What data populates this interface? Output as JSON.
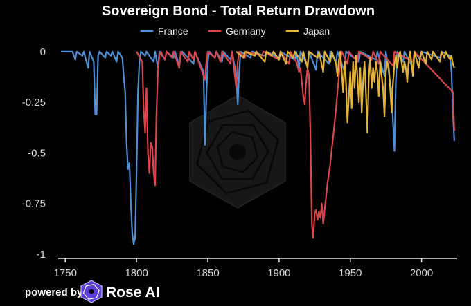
{
  "chart_data": {
    "type": "line",
    "title": "Sovereign Bond - Total Return Drawdown",
    "xlabel": "",
    "ylabel": "",
    "xlim": [
      1745,
      2025
    ],
    "ylim": [
      -1,
      0.03
    ],
    "xticks": [
      1750,
      1800,
      1850,
      1900,
      1950,
      2000
    ],
    "yticks": [
      0,
      -0.25,
      -0.5,
      -0.75,
      -1
    ],
    "ytick_labels": [
      "0",
      "-0.25",
      "-0.5",
      "-0.75",
      "-1"
    ],
    "grid": false,
    "legend_position": "top-center",
    "series": [
      {
        "name": "France",
        "color": "#4f8fd6",
        "points": [
          [
            1747,
            0
          ],
          [
            1755,
            0
          ],
          [
            1757,
            -0.04
          ],
          [
            1758,
            0
          ],
          [
            1762,
            -0.02
          ],
          [
            1763,
            0
          ],
          [
            1766,
            -0.08
          ],
          [
            1767,
            0
          ],
          [
            1770,
            -0.05
          ],
          [
            1771,
            -0.31
          ],
          [
            1772,
            -0.31
          ],
          [
            1773,
            -0.02
          ],
          [
            1774,
            0
          ],
          [
            1778,
            -0.03
          ],
          [
            1779,
            0
          ],
          [
            1782,
            -0.02
          ],
          [
            1783,
            0
          ],
          [
            1786,
            -0.05
          ],
          [
            1787,
            0
          ],
          [
            1790,
            -0.03
          ],
          [
            1791,
            -0.12
          ],
          [
            1792,
            -0.2
          ],
          [
            1793,
            -0.45
          ],
          [
            1794,
            -0.58
          ],
          [
            1795,
            -0.55
          ],
          [
            1796,
            -0.75
          ],
          [
            1797,
            -0.9
          ],
          [
            1798,
            -0.95
          ],
          [
            1799,
            -0.92
          ],
          [
            1800,
            -0.6
          ],
          [
            1801,
            -0.2
          ],
          [
            1802,
            -0.05
          ],
          [
            1803,
            0
          ],
          [
            1806,
            -0.02
          ],
          [
            1807,
            0
          ],
          [
            1812,
            -0.05
          ],
          [
            1813,
            0
          ],
          [
            1815,
            -0.08
          ],
          [
            1816,
            0
          ],
          [
            1820,
            -0.04
          ],
          [
            1821,
            0
          ],
          [
            1826,
            -0.03
          ],
          [
            1827,
            0
          ],
          [
            1830,
            -0.07
          ],
          [
            1831,
            -0.02
          ],
          [
            1832,
            0
          ],
          [
            1840,
            -0.06
          ],
          [
            1841,
            0
          ],
          [
            1847,
            -0.1
          ],
          [
            1848,
            -0.46
          ],
          [
            1849,
            -0.22
          ],
          [
            1850,
            -0.05
          ],
          [
            1851,
            0
          ],
          [
            1855,
            -0.03
          ],
          [
            1856,
            0
          ],
          [
            1860,
            -0.05
          ],
          [
            1861,
            0
          ],
          [
            1866,
            -0.04
          ],
          [
            1867,
            0
          ],
          [
            1870,
            -0.12
          ],
          [
            1871,
            -0.26
          ],
          [
            1872,
            -0.1
          ],
          [
            1873,
            0
          ],
          [
            1880,
            -0.03
          ],
          [
            1881,
            0
          ],
          [
            1890,
            -0.02
          ],
          [
            1891,
            0
          ],
          [
            1900,
            -0.03
          ],
          [
            1901,
            0
          ],
          [
            1911,
            -0.04
          ],
          [
            1912,
            0
          ],
          [
            1914,
            -0.08
          ],
          [
            1915,
            0
          ],
          [
            1920,
            -0.07
          ],
          [
            1921,
            0
          ],
          [
            1926,
            -0.09
          ],
          [
            1927,
            0
          ],
          [
            1935,
            -0.06
          ],
          [
            1936,
            0
          ],
          [
            1940,
            -0.05
          ],
          [
            1941,
            0
          ],
          [
            1946,
            -0.1
          ],
          [
            1947,
            0
          ],
          [
            1956,
            -0.05
          ],
          [
            1957,
            0
          ],
          [
            1968,
            -0.04
          ],
          [
            1969,
            0
          ],
          [
            1974,
            -0.12
          ],
          [
            1975,
            0
          ],
          [
            1979,
            -0.2
          ],
          [
            1980,
            -0.35
          ],
          [
            1981,
            -0.49
          ],
          [
            1982,
            -0.15
          ],
          [
            1983,
            0
          ],
          [
            1987,
            -0.05
          ],
          [
            1988,
            0
          ],
          [
            1994,
            -0.08
          ],
          [
            1995,
            0
          ],
          [
            1999,
            -0.04
          ],
          [
            2000,
            0
          ],
          [
            2013,
            -0.03
          ],
          [
            2014,
            0
          ],
          [
            2020,
            -0.02
          ],
          [
            2021,
            -0.1
          ],
          [
            2022,
            -0.3
          ],
          [
            2023,
            -0.44
          ]
        ]
      },
      {
        "name": "Germany",
        "color": "#d9464b",
        "points": [
          [
            1800,
            0
          ],
          [
            1804,
            -0.05
          ],
          [
            1805,
            -0.28
          ],
          [
            1806,
            -0.4
          ],
          [
            1807,
            -0.18
          ],
          [
            1808,
            -0.5
          ],
          [
            1809,
            -0.6
          ],
          [
            1810,
            -0.45
          ],
          [
            1811,
            -0.47
          ],
          [
            1812,
            -0.6
          ],
          [
            1813,
            -0.66
          ],
          [
            1814,
            -0.3
          ],
          [
            1815,
            -0.1
          ],
          [
            1816,
            -0.02
          ],
          [
            1817,
            0
          ],
          [
            1820,
            -0.04
          ],
          [
            1821,
            0
          ],
          [
            1825,
            -0.03
          ],
          [
            1826,
            0
          ],
          [
            1830,
            -0.08
          ],
          [
            1831,
            0
          ],
          [
            1836,
            -0.05
          ],
          [
            1837,
            0
          ],
          [
            1840,
            -0.04
          ],
          [
            1841,
            0
          ],
          [
            1848,
            -0.14
          ],
          [
            1849,
            -0.05
          ],
          [
            1850,
            0
          ],
          [
            1855,
            -0.03
          ],
          [
            1856,
            0
          ],
          [
            1859,
            -0.05
          ],
          [
            1860,
            0
          ],
          [
            1866,
            -0.06
          ],
          [
            1867,
            0
          ],
          [
            1870,
            -0.18
          ],
          [
            1871,
            -0.05
          ],
          [
            1872,
            0
          ],
          [
            1876,
            -0.03
          ],
          [
            1877,
            0
          ],
          [
            1888,
            -0.02
          ],
          [
            1889,
            0
          ],
          [
            1900,
            -0.04
          ],
          [
            1901,
            0
          ],
          [
            1907,
            -0.06
          ],
          [
            1908,
            0
          ],
          [
            1912,
            -0.05
          ],
          [
            1914,
            -0.1
          ],
          [
            1915,
            -0.08
          ],
          [
            1916,
            -0.15
          ],
          [
            1917,
            -0.22
          ],
          [
            1918,
            -0.26
          ],
          [
            1919,
            -0.15
          ],
          [
            1920,
            -0.08
          ],
          [
            1921,
            -0.12
          ],
          [
            1922,
            -0.4
          ],
          [
            1923,
            -0.85
          ],
          [
            1924,
            -0.92
          ],
          [
            1925,
            -0.8
          ],
          [
            1926,
            -0.78
          ],
          [
            1927,
            -0.83
          ],
          [
            1928,
            -0.79
          ],
          [
            1929,
            -0.82
          ],
          [
            1930,
            -0.75
          ],
          [
            1931,
            -0.85
          ],
          [
            1932,
            -0.78
          ],
          [
            1933,
            -0.72
          ],
          [
            1934,
            -0.65
          ],
          [
            1935,
            -0.6
          ],
          [
            1936,
            -0.55
          ],
          [
            1937,
            -0.48
          ],
          [
            1938,
            -0.42
          ],
          [
            1939,
            -0.35
          ],
          [
            1940,
            -0.28
          ],
          [
            1941,
            -0.2
          ],
          [
            1942,
            -0.12
          ],
          [
            1943,
            -0.05
          ],
          [
            1944,
            0
          ],
          [
            1948,
            -0.06
          ],
          [
            1949,
            0
          ],
          [
            1955,
            -0.05
          ],
          [
            1956,
            0
          ],
          [
            1965,
            -0.04
          ],
          [
            1966,
            0
          ],
          [
            1970,
            -0.06
          ],
          [
            1971,
            0
          ],
          [
            1980,
            -0.07
          ],
          [
            1981,
            0
          ],
          [
            1994,
            -0.05
          ],
          [
            1995,
            0
          ],
          [
            2022,
            -0.2
          ],
          [
            2023,
            -0.39
          ]
        ]
      },
      {
        "name": "Japan",
        "color": "#e4b43a",
        "points": [
          [
            1870,
            0
          ],
          [
            1875,
            -0.03
          ],
          [
            1876,
            0
          ],
          [
            1883,
            -0.02
          ],
          [
            1884,
            0
          ],
          [
            1890,
            -0.05
          ],
          [
            1891,
            0
          ],
          [
            1895,
            -0.02
          ],
          [
            1896,
            0
          ],
          [
            1900,
            -0.04
          ],
          [
            1901,
            0
          ],
          [
            1905,
            -0.06
          ],
          [
            1906,
            0
          ],
          [
            1910,
            -0.03
          ],
          [
            1911,
            0
          ],
          [
            1916,
            -0.05
          ],
          [
            1917,
            0
          ],
          [
            1920,
            -0.08
          ],
          [
            1921,
            0
          ],
          [
            1927,
            -0.03
          ],
          [
            1928,
            0
          ],
          [
            1931,
            -0.1
          ],
          [
            1932,
            0
          ],
          [
            1936,
            -0.05
          ],
          [
            1937,
            0
          ],
          [
            1940,
            -0.06
          ],
          [
            1941,
            -0.12
          ],
          [
            1942,
            -0.04
          ],
          [
            1943,
            0
          ],
          [
            1944,
            -0.1
          ],
          [
            1945,
            -0.2
          ],
          [
            1946,
            -0.05
          ],
          [
            1947,
            -0.15
          ],
          [
            1948,
            -0.35
          ],
          [
            1949,
            -0.22
          ],
          [
            1950,
            -0.1
          ],
          [
            1951,
            -0.28
          ],
          [
            1952,
            -0.05
          ],
          [
            1953,
            -0.18
          ],
          [
            1954,
            -0.02
          ],
          [
            1955,
            -0.12
          ],
          [
            1956,
            -0.25
          ],
          [
            1957,
            -0.08
          ],
          [
            1958,
            -0.3
          ],
          [
            1959,
            -0.15
          ],
          [
            1960,
            -0.05
          ],
          [
            1961,
            -0.2
          ],
          [
            1962,
            -0.4
          ],
          [
            1963,
            -0.12
          ],
          [
            1964,
            -0.03
          ],
          [
            1965,
            -0.18
          ],
          [
            1966,
            -0.08
          ],
          [
            1967,
            -0.15
          ],
          [
            1968,
            -0.05
          ],
          [
            1969,
            -0.1
          ],
          [
            1970,
            -0.22
          ],
          [
            1971,
            -0.05
          ],
          [
            1972,
            -0.12
          ],
          [
            1973,
            -0.18
          ],
          [
            1974,
            -0.32
          ],
          [
            1975,
            -0.1
          ],
          [
            1976,
            -0.05
          ],
          [
            1977,
            -0.08
          ],
          [
            1978,
            -0.18
          ],
          [
            1979,
            -0.3
          ],
          [
            1980,
            -0.15
          ],
          [
            1981,
            -0.06
          ],
          [
            1982,
            -0.02
          ],
          [
            1983,
            -0.08
          ],
          [
            1984,
            -0.02
          ],
          [
            1985,
            0
          ],
          [
            1987,
            -0.1
          ],
          [
            1988,
            -0.05
          ],
          [
            1989,
            -0.08
          ],
          [
            1990,
            -0.15
          ],
          [
            1991,
            -0.04
          ],
          [
            1992,
            0
          ],
          [
            1994,
            -0.12
          ],
          [
            1995,
            0
          ],
          [
            1998,
            -0.08
          ],
          [
            1999,
            -0.03
          ],
          [
            2000,
            0
          ],
          [
            2003,
            -0.06
          ],
          [
            2004,
            0
          ],
          [
            2007,
            -0.04
          ],
          [
            2008,
            0
          ],
          [
            2013,
            -0.05
          ],
          [
            2014,
            0
          ],
          [
            2016,
            -0.03
          ],
          [
            2017,
            0
          ],
          [
            2020,
            -0.04
          ],
          [
            2021,
            -0.02
          ],
          [
            2022,
            -0.06
          ],
          [
            2023,
            -0.08
          ]
        ]
      }
    ]
  },
  "footer": {
    "powered_by": "powered by",
    "brand": "Rose AI"
  }
}
